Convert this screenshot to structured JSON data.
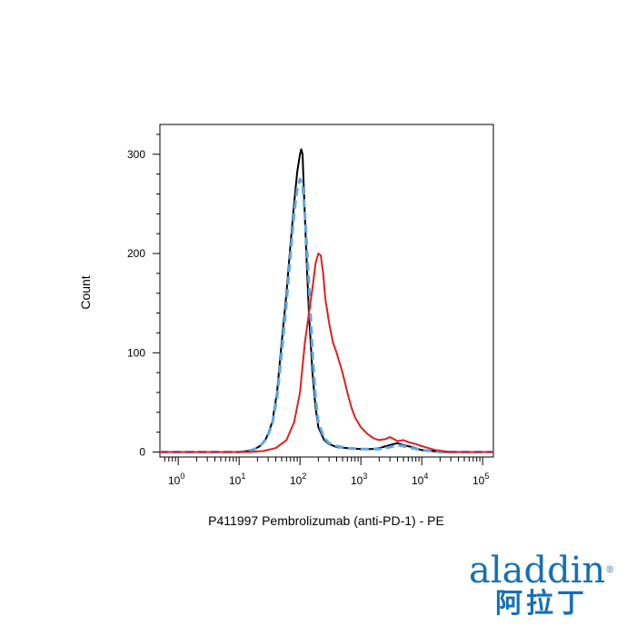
{
  "chart_data": {
    "type": "line",
    "title": "",
    "xlabel": "P411997 Pembrolizumab (anti-PD-1) - PE",
    "ylabel": "Count",
    "xscale": "log",
    "xlim": [
      0.5,
      150000
    ],
    "ylim": [
      -5,
      330
    ],
    "x_ticks": [
      {
        "value": 1,
        "base": "10",
        "exp": "0"
      },
      {
        "value": 10,
        "base": "10",
        "exp": "1"
      },
      {
        "value": 100,
        "base": "10",
        "exp": "2"
      },
      {
        "value": 1000,
        "base": "10",
        "exp": "3"
      },
      {
        "value": 10000,
        "base": "10",
        "exp": "4"
      },
      {
        "value": 100000,
        "base": "10",
        "exp": "5"
      }
    ],
    "y_ticks": [
      0,
      100,
      200,
      300
    ],
    "grid": false,
    "legend": "none",
    "series": [
      {
        "color": "#000000",
        "style": "solid",
        "x": [
          0.5,
          10,
          14,
          18,
          22,
          28,
          35,
          42,
          50,
          60,
          70,
          80,
          90,
          100,
          105,
          110,
          115,
          125,
          140,
          160,
          180,
          200,
          250,
          300,
          400,
          600,
          1000,
          1500,
          2000,
          3000,
          4000,
          5000,
          7000,
          10000,
          15000,
          20000,
          150000
        ],
        "y": [
          0,
          0,
          1,
          3,
          6,
          14,
          30,
          60,
          110,
          160,
          210,
          250,
          282,
          300,
          305,
          300,
          270,
          210,
          140,
          80,
          45,
          25,
          12,
          8,
          5,
          4,
          3,
          3,
          4,
          7,
          9,
          7,
          5,
          2,
          1,
          0,
          0
        ]
      },
      {
        "color": "#5ba8e8",
        "style": "dashed",
        "x": [
          0.5,
          10,
          14,
          18,
          22,
          28,
          35,
          42,
          50,
          60,
          70,
          80,
          90,
          100,
          110,
          120,
          140,
          160,
          180,
          200,
          250,
          300,
          400,
          600,
          1000,
          1500,
          2000,
          3000,
          4000,
          5000,
          7000,
          10000,
          15000,
          20000,
          150000
        ],
        "y": [
          0,
          0,
          1,
          3,
          6,
          13,
          28,
          55,
          100,
          150,
          200,
          240,
          265,
          275,
          270,
          240,
          170,
          100,
          55,
          30,
          14,
          9,
          6,
          4,
          3,
          3,
          3,
          5,
          7,
          6,
          4,
          2,
          1,
          0,
          0
        ]
      },
      {
        "color": "#e02020",
        "style": "solid",
        "x": [
          0.5,
          15,
          25,
          40,
          60,
          80,
          100,
          120,
          140,
          160,
          180,
          200,
          220,
          240,
          260,
          300,
          350,
          400,
          500,
          600,
          700,
          800,
          1000,
          1300,
          1600,
          2000,
          2500,
          3000,
          3500,
          4000,
          5000,
          6000,
          8000,
          10000,
          13000,
          17000,
          22000,
          30000,
          150000
        ],
        "y": [
          0,
          0,
          1,
          4,
          12,
          30,
          60,
          110,
          140,
          165,
          190,
          200,
          198,
          180,
          155,
          130,
          110,
          100,
          80,
          60,
          45,
          35,
          25,
          18,
          14,
          12,
          13,
          15,
          13,
          11,
          12,
          10,
          8,
          6,
          4,
          2,
          1,
          0,
          0
        ]
      }
    ]
  },
  "logo": {
    "wordmark": "aladdin",
    "registered": "®",
    "chinese": "阿拉丁",
    "color": "#1670b8"
  }
}
